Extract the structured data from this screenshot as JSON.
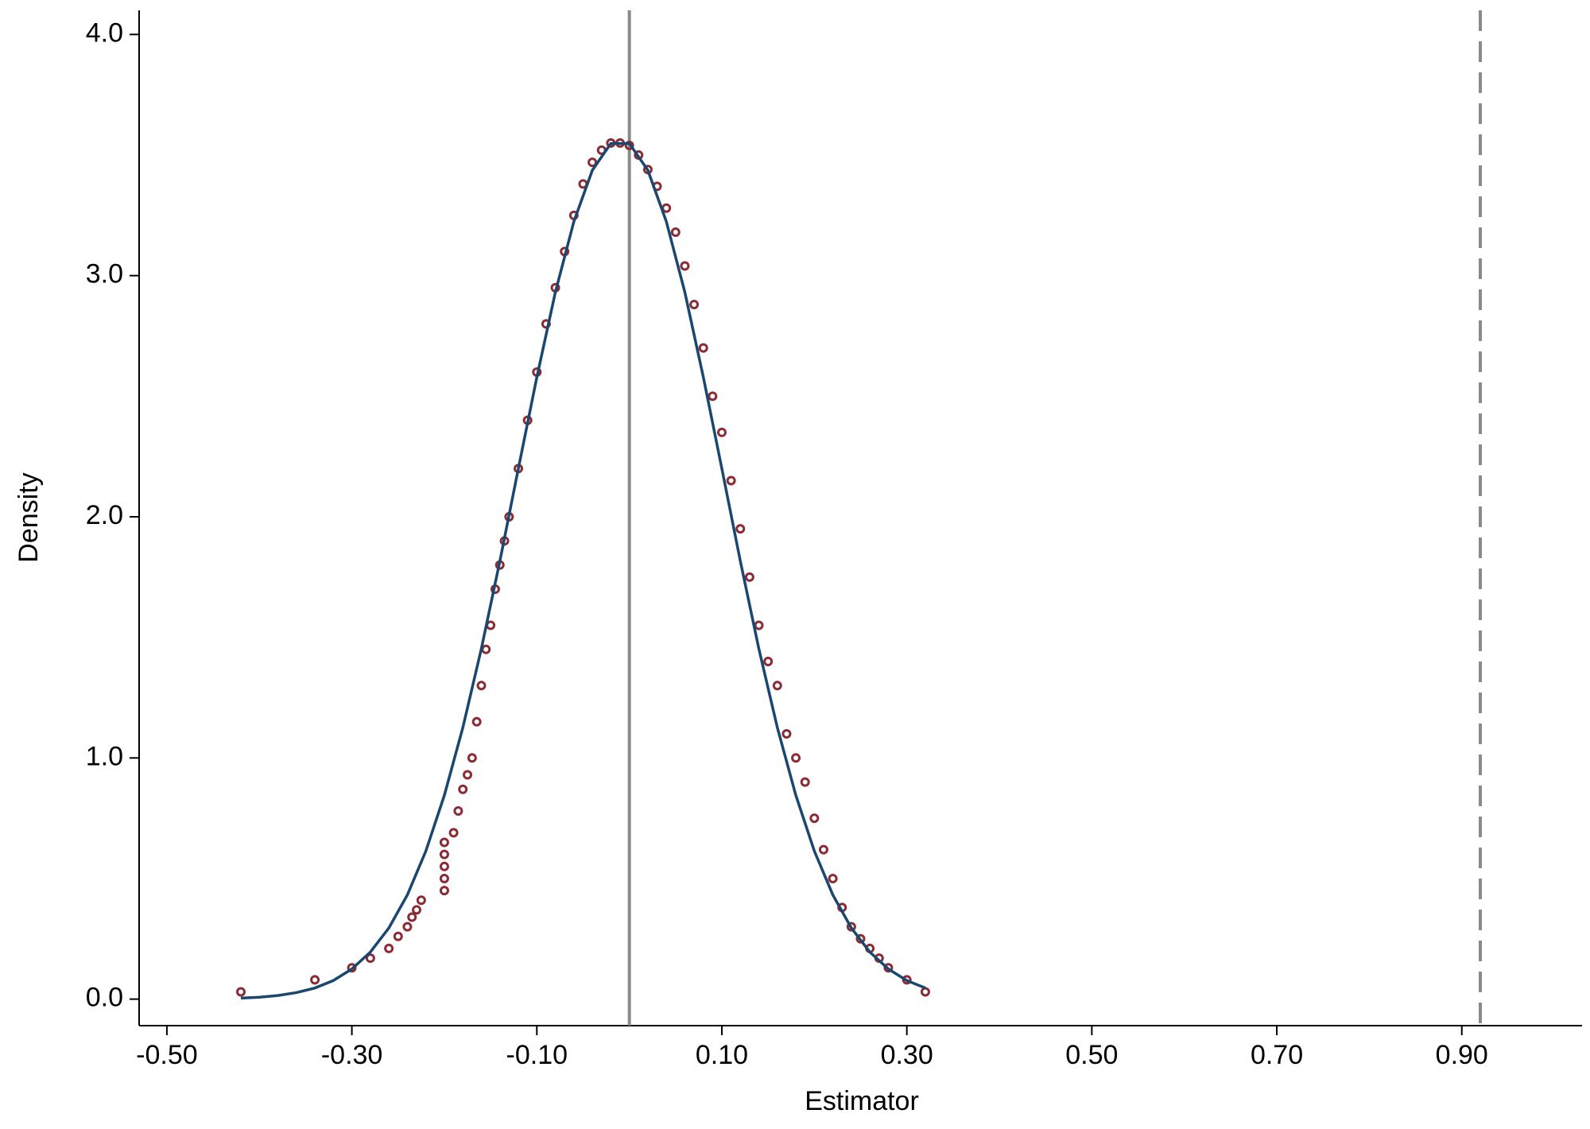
{
  "chart_data": {
    "type": "scatter",
    "x_label": "Estimator",
    "y_label": "Density",
    "xlim": [
      -0.53,
      1.03
    ],
    "ylim": [
      -0.11,
      4.1
    ],
    "xticks": [
      {
        "value": -0.5,
        "label": "-0.50"
      },
      {
        "value": -0.3,
        "label": "-0.30"
      },
      {
        "value": -0.1,
        "label": "-0.10"
      },
      {
        "value": 0.1,
        "label": "0.10"
      },
      {
        "value": 0.3,
        "label": "0.30"
      },
      {
        "value": 0.5,
        "label": "0.50"
      },
      {
        "value": 0.7,
        "label": "0.70"
      },
      {
        "value": 0.9,
        "label": "0.90"
      }
    ],
    "yticks": [
      {
        "value": 0,
        "label": "0.0"
      },
      {
        "value": 1,
        "label": "1.0"
      },
      {
        "value": 2,
        "label": "2.0"
      },
      {
        "value": 3,
        "label": "3.0"
      },
      {
        "value": 4,
        "label": "4.0"
      }
    ],
    "grid": false,
    "reference_lines": [
      {
        "value": 0,
        "style": "solid",
        "color": "#8a8a8a"
      },
      {
        "value": 0.92,
        "style": "dashed",
        "color": "#8a8a8a"
      }
    ],
    "series": [
      {
        "mark": "circle",
        "color": "#8b2c35",
        "x": [
          -0.42,
          -0.34,
          -0.3,
          -0.28,
          -0.26,
          -0.25,
          -0.24,
          -0.235,
          -0.23,
          -0.225,
          -0.2,
          -0.2,
          -0.2,
          -0.2,
          -0.2,
          -0.19,
          -0.185,
          -0.18,
          -0.175,
          -0.17,
          -0.165,
          -0.16,
          -0.155,
          -0.15,
          -0.145,
          -0.14,
          -0.135,
          -0.13,
          -0.12,
          -0.11,
          -0.1,
          -0.09,
          -0.08,
          -0.07,
          -0.06,
          -0.05,
          -0.04,
          -0.03,
          -0.02,
          -0.01,
          0,
          0.01,
          0.02,
          0.03,
          0.04,
          0.05,
          0.06,
          0.07,
          0.08,
          0.09,
          0.1,
          0.11,
          0.12,
          0.13,
          0.14,
          0.15,
          0.16,
          0.17,
          0.18,
          0.19,
          0.2,
          0.21,
          0.22,
          0.23,
          0.24,
          0.25,
          0.26,
          0.27,
          0.28,
          0.3,
          0.32
        ],
        "values": [
          0.03,
          0.08,
          0.13,
          0.17,
          0.21,
          0.26,
          0.3,
          0.34,
          0.37,
          0.41,
          0.45,
          0.5,
          0.55,
          0.6,
          0.65,
          0.69,
          0.78,
          0.87,
          0.93,
          1.0,
          1.15,
          1.3,
          1.45,
          1.55,
          1.7,
          1.8,
          1.9,
          2.0,
          2.2,
          2.4,
          2.6,
          2.8,
          2.95,
          3.1,
          3.25,
          3.38,
          3.47,
          3.52,
          3.55,
          3.55,
          3.54,
          3.5,
          3.44,
          3.37,
          3.28,
          3.18,
          3.04,
          2.88,
          2.7,
          2.5,
          2.35,
          2.15,
          1.95,
          1.75,
          1.55,
          1.4,
          1.3,
          1.1,
          1.0,
          0.9,
          0.75,
          0.62,
          0.5,
          0.38,
          0.3,
          0.25,
          0.21,
          0.17,
          0.13,
          0.08,
          0.03
        ]
      },
      {
        "mark": "line",
        "color": "#1a476f",
        "x": [
          -0.42,
          -0.4,
          -0.38,
          -0.36,
          -0.34,
          -0.32,
          -0.3,
          -0.28,
          -0.26,
          -0.24,
          -0.22,
          -0.2,
          -0.18,
          -0.16,
          -0.14,
          -0.12,
          -0.1,
          -0.08,
          -0.06,
          -0.04,
          -0.02,
          0,
          0.02,
          0.04,
          0.06,
          0.08,
          0.1,
          0.12,
          0.14,
          0.16,
          0.18,
          0.2,
          0.22,
          0.24,
          0.26,
          0.28,
          0.3,
          0.32
        ],
        "values": [
          0.004,
          0.008,
          0.015,
          0.027,
          0.046,
          0.077,
          0.125,
          0.195,
          0.295,
          0.432,
          0.614,
          0.845,
          1.126,
          1.453,
          1.816,
          2.2,
          2.579,
          2.931,
          3.224,
          3.437,
          3.548,
          3.548,
          3.437,
          3.224,
          2.931,
          2.579,
          2.2,
          1.816,
          1.453,
          1.126,
          0.845,
          0.614,
          0.432,
          0.295,
          0.195,
          0.125,
          0.077,
          0.046
        ]
      }
    ]
  }
}
